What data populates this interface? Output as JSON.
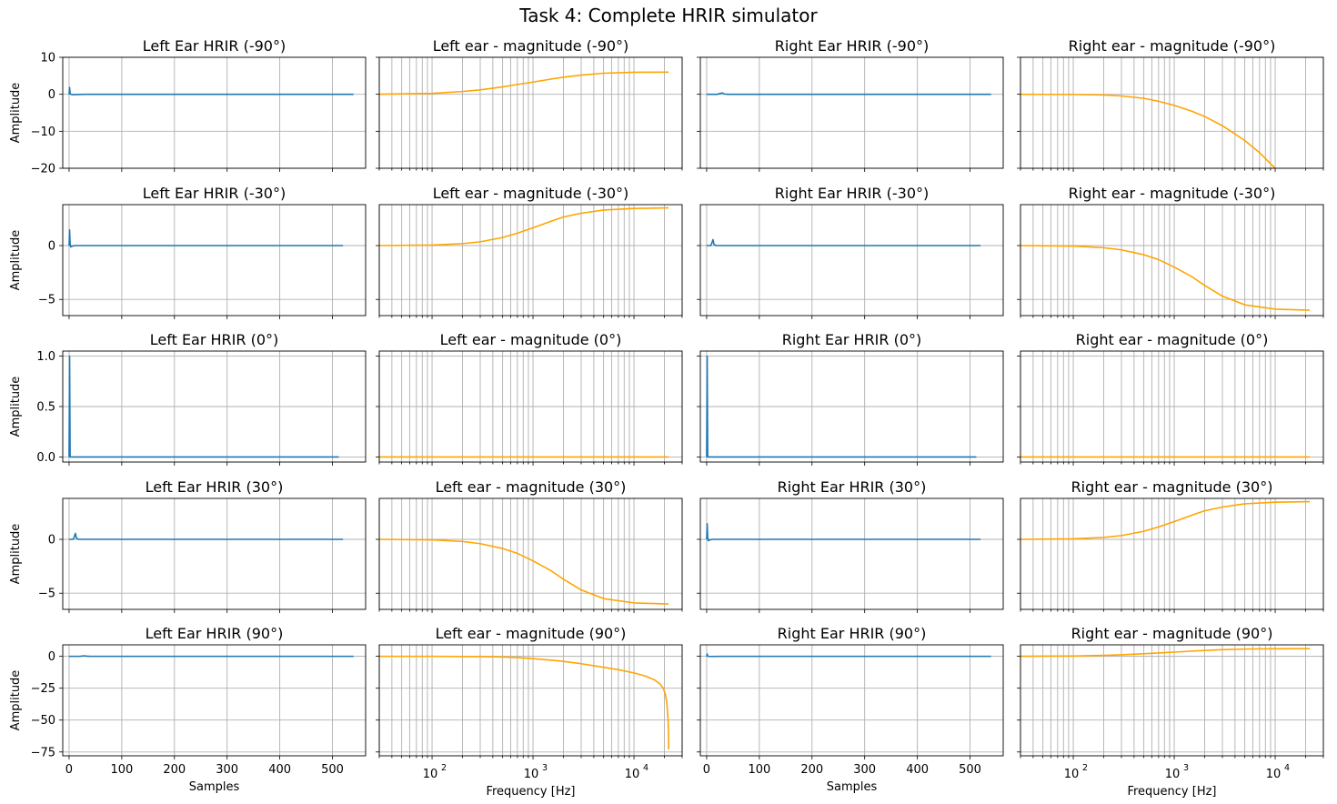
{
  "figure_title": "Task 4: Complete HRIR simulator",
  "colors": {
    "hrir": "#1f77b4",
    "magnitude": "#ffa500",
    "grid": "#b0b0b0",
    "axes": "#000000"
  },
  "chart_data": [
    {
      "type": "line",
      "row": 0,
      "col": 0,
      "title": "Left Ear HRIR (-90°)",
      "ylabel": "Amplitude",
      "xlabel": "",
      "xscale": "linear",
      "xlim": [
        -12,
        563
      ],
      "ylim": [
        -20,
        10
      ],
      "xticks": [
        0,
        100,
        200,
        300,
        400,
        500
      ],
      "yticks": [
        -20,
        -10,
        0,
        10
      ],
      "ytick_labels": [
        "−20",
        "−10",
        "0",
        "10"
      ],
      "show_xticklabels": false,
      "show_yticklabels": true,
      "grid": true,
      "color": "#1f77b4",
      "x": [
        0,
        1,
        2,
        3,
        8,
        30,
        100,
        200,
        300,
        400,
        500,
        540
      ],
      "y": [
        0,
        1.85,
        0.2,
        0,
        -0.1,
        0,
        0,
        0,
        0,
        0,
        0,
        0
      ]
    },
    {
      "type": "line",
      "row": 0,
      "col": 1,
      "title": "Left ear - magnitude (-90°)",
      "ylabel": "",
      "xlabel": "",
      "xscale": "log",
      "xlim": [
        30,
        30000
      ],
      "ylim": [
        -20,
        10
      ],
      "xticks": [
        100,
        1000,
        10000
      ],
      "yticks": [
        -20,
        -10,
        0,
        10
      ],
      "show_xticklabels": false,
      "show_yticklabels": false,
      "grid": true,
      "color": "#ffa500",
      "x": [
        30,
        100,
        200,
        300,
        500,
        700,
        1000,
        1500,
        2000,
        3000,
        5000,
        10000,
        22000
      ],
      "y": [
        0.02,
        0.25,
        0.75,
        1.2,
        2.0,
        2.65,
        3.3,
        4.1,
        4.6,
        5.2,
        5.7,
        5.95,
        6.0
      ]
    },
    {
      "type": "line",
      "row": 0,
      "col": 2,
      "title": "Right Ear HRIR (-90°)",
      "ylabel": "",
      "xlabel": "",
      "xscale": "linear",
      "xlim": [
        -12,
        563
      ],
      "ylim": [
        -20,
        10
      ],
      "xticks": [
        0,
        100,
        200,
        300,
        400,
        500
      ],
      "yticks": [
        -20,
        -10,
        0,
        10
      ],
      "show_xticklabels": false,
      "show_yticklabels": false,
      "grid": true,
      "color": "#1f77b4",
      "x": [
        0,
        20,
        28,
        30,
        33,
        40,
        100,
        200,
        300,
        400,
        500,
        540
      ],
      "y": [
        0,
        0,
        0.3,
        0.35,
        0.1,
        0,
        0,
        0,
        0,
        0,
        0,
        0
      ]
    },
    {
      "type": "line",
      "row": 0,
      "col": 3,
      "title": "Right ear - magnitude (-90°)",
      "ylabel": "",
      "xlabel": "",
      "xscale": "log",
      "xlim": [
        30,
        30000
      ],
      "ylim": [
        -20,
        10
      ],
      "xticks": [
        100,
        1000,
        10000
      ],
      "yticks": [
        -20,
        -10,
        0,
        10
      ],
      "show_xticklabels": false,
      "show_yticklabels": false,
      "grid": true,
      "color": "#ffa500",
      "x": [
        30,
        100,
        200,
        300,
        500,
        700,
        1000,
        1500,
        2000,
        3000,
        5000,
        7000,
        10000
      ],
      "y": [
        0,
        -0.05,
        -0.2,
        -0.45,
        -1.1,
        -1.9,
        -3.0,
        -4.6,
        -6.0,
        -8.5,
        -12.5,
        -15.8,
        -20
      ]
    },
    {
      "type": "line",
      "row": 1,
      "col": 0,
      "title": "Left Ear HRIR (-30°)",
      "ylabel": "Amplitude",
      "xlabel": "",
      "xscale": "linear",
      "xlim": [
        -12,
        563
      ],
      "ylim": [
        -6.5,
        3.8
      ],
      "xticks": [
        0,
        100,
        200,
        300,
        400,
        500
      ],
      "yticks": [
        -5,
        0
      ],
      "ytick_labels": [
        "−5",
        "0"
      ],
      "show_xticklabels": false,
      "show_yticklabels": true,
      "grid": true,
      "color": "#1f77b4",
      "x": [
        0,
        1,
        2,
        3,
        6,
        12,
        100,
        200,
        300,
        400,
        500,
        520
      ],
      "y": [
        0,
        1.45,
        0.15,
        -0.12,
        -0.05,
        0,
        0,
        0,
        0,
        0,
        0,
        0
      ]
    },
    {
      "type": "line",
      "row": 1,
      "col": 1,
      "title": "Left ear - magnitude (-30°)",
      "ylabel": "",
      "xlabel": "",
      "xscale": "log",
      "xlim": [
        30,
        30000
      ],
      "ylim": [
        -6.5,
        3.8
      ],
      "xticks": [
        100,
        1000,
        10000
      ],
      "yticks": [
        -5,
        0
      ],
      "show_xticklabels": false,
      "show_yticklabels": false,
      "grid": true,
      "color": "#ffa500",
      "x": [
        30,
        100,
        200,
        300,
        500,
        700,
        1000,
        1500,
        2000,
        3000,
        5000,
        10000,
        22000
      ],
      "y": [
        0,
        0.05,
        0.18,
        0.35,
        0.75,
        1.15,
        1.65,
        2.25,
        2.65,
        3.0,
        3.3,
        3.45,
        3.5
      ]
    },
    {
      "type": "line",
      "row": 1,
      "col": 2,
      "title": "Right Ear HRIR (-30°)",
      "ylabel": "",
      "xlabel": "",
      "xscale": "linear",
      "xlim": [
        -12,
        563
      ],
      "ylim": [
        -6.5,
        3.8
      ],
      "xticks": [
        0,
        100,
        200,
        300,
        400,
        500
      ],
      "yticks": [
        -5,
        0
      ],
      "show_xticklabels": false,
      "show_yticklabels": false,
      "grid": true,
      "color": "#1f77b4",
      "x": [
        0,
        8,
        11,
        12,
        14,
        18,
        100,
        200,
        300,
        400,
        500,
        520
      ],
      "y": [
        0,
        0,
        0.4,
        0.55,
        0.1,
        0,
        0,
        0,
        0,
        0,
        0,
        0
      ]
    },
    {
      "type": "line",
      "row": 1,
      "col": 3,
      "title": "Right ear - magnitude (-30°)",
      "ylabel": "",
      "xlabel": "",
      "xscale": "log",
      "xlim": [
        30,
        30000
      ],
      "ylim": [
        -6.5,
        3.8
      ],
      "xticks": [
        100,
        1000,
        10000
      ],
      "yticks": [
        -5,
        0
      ],
      "show_xticklabels": false,
      "show_yticklabels": false,
      "grid": true,
      "color": "#ffa500",
      "x": [
        30,
        100,
        200,
        300,
        500,
        700,
        1000,
        1500,
        2000,
        3000,
        5000,
        10000,
        22000
      ],
      "y": [
        0,
        -0.05,
        -0.2,
        -0.4,
        -0.85,
        -1.3,
        -2.0,
        -2.9,
        -3.7,
        -4.7,
        -5.5,
        -5.9,
        -6.0
      ]
    },
    {
      "type": "line",
      "row": 2,
      "col": 0,
      "title": "Left Ear HRIR (0°)",
      "ylabel": "Amplitude",
      "xlabel": "",
      "xscale": "linear",
      "xlim": [
        -12,
        563
      ],
      "ylim": [
        -0.05,
        1.05
      ],
      "xticks": [
        0,
        100,
        200,
        300,
        400,
        500
      ],
      "yticks": [
        0,
        0.5,
        1.0
      ],
      "ytick_labels": [
        "0.0",
        "0.5",
        "1.0"
      ],
      "show_xticklabels": false,
      "show_yticklabels": true,
      "grid": true,
      "color": "#1f77b4",
      "x": [
        0,
        1,
        2,
        3,
        100,
        200,
        300,
        400,
        500,
        512
      ],
      "y": [
        0,
        1.0,
        0.0,
        0,
        0,
        0,
        0,
        0,
        0,
        0
      ]
    },
    {
      "type": "line",
      "row": 2,
      "col": 1,
      "title": "Left ear - magnitude (0°)",
      "ylabel": "",
      "xlabel": "",
      "xscale": "log",
      "xlim": [
        30,
        30000
      ],
      "ylim": [
        -0.05,
        1.05
      ],
      "xticks": [
        100,
        1000,
        10000
      ],
      "yticks": [
        0,
        0.5,
        1.0
      ],
      "show_xticklabels": false,
      "show_yticklabels": false,
      "grid": true,
      "color": "#ffa500",
      "x": [
        30,
        22000
      ],
      "y": [
        0,
        0
      ]
    },
    {
      "type": "line",
      "row": 2,
      "col": 2,
      "title": "Right Ear HRIR (0°)",
      "ylabel": "",
      "xlabel": "",
      "xscale": "linear",
      "xlim": [
        -12,
        563
      ],
      "ylim": [
        -0.05,
        1.05
      ],
      "xticks": [
        0,
        100,
        200,
        300,
        400,
        500
      ],
      "yticks": [
        0,
        0.5,
        1.0
      ],
      "show_xticklabels": false,
      "show_yticklabels": false,
      "grid": true,
      "color": "#1f77b4",
      "x": [
        0,
        1,
        2,
        3,
        100,
        200,
        300,
        400,
        500,
        512
      ],
      "y": [
        0,
        1.0,
        0.0,
        0,
        0,
        0,
        0,
        0,
        0,
        0
      ]
    },
    {
      "type": "line",
      "row": 2,
      "col": 3,
      "title": "Right ear - magnitude (0°)",
      "ylabel": "",
      "xlabel": "",
      "xscale": "log",
      "xlim": [
        30,
        30000
      ],
      "ylim": [
        -0.05,
        1.05
      ],
      "xticks": [
        100,
        1000,
        10000
      ],
      "yticks": [
        0,
        0.5,
        1.0
      ],
      "show_xticklabels": false,
      "show_yticklabels": false,
      "grid": true,
      "color": "#ffa500",
      "x": [
        30,
        22000
      ],
      "y": [
        0,
        0
      ]
    },
    {
      "type": "line",
      "row": 3,
      "col": 0,
      "title": "Left Ear HRIR (30°)",
      "ylabel": "Amplitude",
      "xlabel": "",
      "xscale": "linear",
      "xlim": [
        -12,
        563
      ],
      "ylim": [
        -6.5,
        3.8
      ],
      "xticks": [
        0,
        100,
        200,
        300,
        400,
        500
      ],
      "yticks": [
        -5,
        0
      ],
      "ytick_labels": [
        "−5",
        "0"
      ],
      "show_xticklabels": false,
      "show_yticklabels": true,
      "grid": true,
      "color": "#1f77b4",
      "x": [
        0,
        8,
        11,
        12,
        14,
        18,
        100,
        200,
        300,
        400,
        500,
        520
      ],
      "y": [
        0,
        0,
        0.4,
        0.55,
        0.1,
        0,
        0,
        0,
        0,
        0,
        0,
        0
      ]
    },
    {
      "type": "line",
      "row": 3,
      "col": 1,
      "title": "Left ear - magnitude (30°)",
      "ylabel": "",
      "xlabel": "",
      "xscale": "log",
      "xlim": [
        30,
        30000
      ],
      "ylim": [
        -6.5,
        3.8
      ],
      "xticks": [
        100,
        1000,
        10000
      ],
      "yticks": [
        -5,
        0
      ],
      "show_xticklabels": false,
      "show_yticklabels": false,
      "grid": true,
      "color": "#ffa500",
      "x": [
        30,
        100,
        200,
        300,
        500,
        700,
        1000,
        1500,
        2000,
        3000,
        5000,
        10000,
        22000
      ],
      "y": [
        0,
        -0.05,
        -0.2,
        -0.4,
        -0.85,
        -1.3,
        -2.0,
        -2.9,
        -3.7,
        -4.7,
        -5.5,
        -5.9,
        -6.0
      ]
    },
    {
      "type": "line",
      "row": 3,
      "col": 2,
      "title": "Right Ear HRIR (30°)",
      "ylabel": "",
      "xlabel": "",
      "xscale": "linear",
      "xlim": [
        -12,
        563
      ],
      "ylim": [
        -6.5,
        3.8
      ],
      "xticks": [
        0,
        100,
        200,
        300,
        400,
        500
      ],
      "yticks": [
        -5,
        0
      ],
      "show_xticklabels": false,
      "show_yticklabels": false,
      "grid": true,
      "color": "#1f77b4",
      "x": [
        0,
        1,
        2,
        3,
        6,
        12,
        100,
        200,
        300,
        400,
        500,
        520
      ],
      "y": [
        0,
        1.45,
        0.15,
        -0.12,
        -0.05,
        0,
        0,
        0,
        0,
        0,
        0,
        0
      ]
    },
    {
      "type": "line",
      "row": 3,
      "col": 3,
      "title": "Right ear - magnitude (30°)",
      "ylabel": "",
      "xlabel": "",
      "xscale": "log",
      "xlim": [
        30,
        30000
      ],
      "ylim": [
        -6.5,
        3.8
      ],
      "xticks": [
        100,
        1000,
        10000
      ],
      "yticks": [
        -5,
        0
      ],
      "show_xticklabels": false,
      "show_yticklabels": false,
      "grid": true,
      "color": "#ffa500",
      "x": [
        30,
        100,
        200,
        300,
        500,
        700,
        1000,
        1500,
        2000,
        3000,
        5000,
        10000,
        22000
      ],
      "y": [
        0,
        0.05,
        0.18,
        0.35,
        0.75,
        1.15,
        1.65,
        2.25,
        2.65,
        3.0,
        3.3,
        3.45,
        3.5
      ]
    },
    {
      "type": "line",
      "row": 4,
      "col": 0,
      "title": "Left Ear HRIR (90°)",
      "ylabel": "Amplitude",
      "xlabel": "Samples",
      "xscale": "linear",
      "xlim": [
        -12,
        563
      ],
      "ylim": [
        -78,
        9
      ],
      "xticks": [
        0,
        100,
        200,
        300,
        400,
        500
      ],
      "xtick_labels": [
        "0",
        "100",
        "200",
        "300",
        "400",
        "500"
      ],
      "yticks": [
        -75,
        -50,
        -25,
        0
      ],
      "ytick_labels": [
        "−75",
        "−50",
        "−25",
        "0"
      ],
      "show_xticklabels": true,
      "show_yticklabels": true,
      "grid": true,
      "color": "#1f77b4",
      "x": [
        0,
        20,
        28,
        30,
        33,
        40,
        100,
        200,
        300,
        400,
        500,
        540
      ],
      "y": [
        0,
        0,
        0.3,
        0.35,
        0.1,
        0,
        0,
        0,
        0,
        0,
        0,
        0
      ]
    },
    {
      "type": "line",
      "row": 4,
      "col": 1,
      "title": "Left ear - magnitude (90°)",
      "ylabel": "",
      "xlabel": "Frequency [Hz]",
      "xscale": "log",
      "xlim": [
        30,
        30000
      ],
      "ylim": [
        -78,
        9
      ],
      "xticks": [
        100,
        1000,
        10000
      ],
      "xtick_labels": [
        "10",
        "10",
        "10"
      ],
      "xtick_exps": [
        "2",
        "3",
        "4"
      ],
      "yticks": [
        -75,
        -50,
        -25,
        0
      ],
      "show_xticklabels": true,
      "show_yticklabels": false,
      "grid": true,
      "color": "#ffa500",
      "x": [
        30,
        100,
        300,
        500,
        700,
        1000,
        1500,
        2000,
        3000,
        5000,
        7000,
        10000,
        13000,
        16000,
        18000,
        19500,
        20500,
        21200,
        21700,
        22000,
        22050
      ],
      "y": [
        0,
        0,
        -0.2,
        -0.5,
        -1.0,
        -1.8,
        -3.0,
        -4.0,
        -5.8,
        -8.6,
        -10.5,
        -13.0,
        -15.5,
        -18.5,
        -21.5,
        -25,
        -30,
        -37,
        -48,
        -60,
        -73
      ]
    },
    {
      "type": "line",
      "row": 4,
      "col": 2,
      "title": "Right Ear HRIR (90°)",
      "ylabel": "",
      "xlabel": "Samples",
      "xscale": "linear",
      "xlim": [
        -12,
        563
      ],
      "ylim": [
        -78,
        9
      ],
      "xticks": [
        0,
        100,
        200,
        300,
        400,
        500
      ],
      "xtick_labels": [
        "0",
        "100",
        "200",
        "300",
        "400",
        "500"
      ],
      "yticks": [
        -75,
        -50,
        -25,
        0
      ],
      "show_xticklabels": true,
      "show_yticklabels": false,
      "grid": true,
      "color": "#1f77b4",
      "x": [
        0,
        1,
        2,
        3,
        8,
        30,
        100,
        200,
        300,
        400,
        500,
        540
      ],
      "y": [
        0,
        1.85,
        0.2,
        0,
        -0.1,
        0,
        0,
        0,
        0,
        0,
        0,
        0
      ]
    },
    {
      "type": "line",
      "row": 4,
      "col": 3,
      "title": "Right ear - magnitude (90°)",
      "ylabel": "",
      "xlabel": "Frequency [Hz]",
      "xscale": "log",
      "xlim": [
        30,
        30000
      ],
      "ylim": [
        -78,
        9
      ],
      "xticks": [
        100,
        1000,
        10000
      ],
      "xtick_labels": [
        "10",
        "10",
        "10"
      ],
      "xtick_exps": [
        "2",
        "3",
        "4"
      ],
      "yticks": [
        -75,
        -50,
        -25,
        0
      ],
      "show_xticklabels": true,
      "show_yticklabels": false,
      "grid": true,
      "color": "#ffa500",
      "x": [
        30,
        100,
        200,
        300,
        500,
        700,
        1000,
        1500,
        2000,
        3000,
        5000,
        10000,
        22000
      ],
      "y": [
        0.02,
        0.25,
        0.75,
        1.2,
        2.0,
        2.65,
        3.3,
        4.1,
        4.6,
        5.2,
        5.7,
        5.95,
        6.0
      ]
    }
  ]
}
